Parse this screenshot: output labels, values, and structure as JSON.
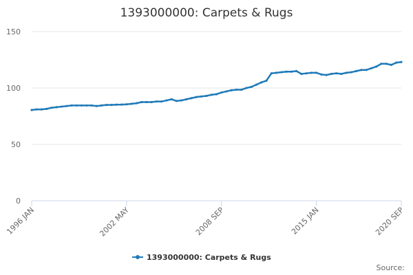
{
  "chart_data": {
    "type": "line",
    "title": "1393000000: Carpets & Rugs",
    "categories": [
      "1996 JAN",
      null,
      null,
      null,
      null,
      null,
      null,
      null,
      null,
      null,
      null,
      null,
      null,
      null,
      null,
      null,
      null,
      null,
      null,
      "2002 MAY",
      null,
      null,
      null,
      null,
      null,
      null,
      null,
      null,
      null,
      null,
      null,
      null,
      null,
      null,
      null,
      null,
      null,
      null,
      "2008 SEP",
      null,
      null,
      null,
      null,
      null,
      null,
      null,
      null,
      null,
      null,
      null,
      null,
      null,
      null,
      null,
      null,
      null,
      null,
      "2015 JAN",
      null,
      null,
      null,
      null,
      null,
      null,
      null,
      null,
      null,
      null,
      null,
      null,
      null,
      null,
      null,
      null,
      "2020 SEP"
    ],
    "series": [
      {
        "name": "1393000000: Carpets & Rugs",
        "color": "#1f7ab8",
        "values": [
          80.5,
          81,
          81,
          81.5,
          82.5,
          83,
          83.5,
          84,
          84.5,
          84.5,
          84.5,
          84.5,
          84.5,
          84,
          84.5,
          85,
          85,
          85.2,
          85.3,
          85.5,
          86,
          86.5,
          87.5,
          87.5,
          87.5,
          88,
          88,
          89,
          90,
          88.5,
          89,
          90,
          91,
          92,
          92.5,
          93,
          94,
          94.5,
          96,
          97,
          98,
          98.5,
          98.5,
          100,
          101,
          103,
          105,
          106.5,
          113,
          113.5,
          114,
          114.5,
          114.5,
          115,
          112.5,
          113,
          113.5,
          113.5,
          112,
          111.5,
          112.5,
          113,
          112.5,
          113.5,
          114,
          115,
          116,
          116,
          117.5,
          119,
          121.5,
          121.5,
          120.5,
          122.5,
          123
        ]
      }
    ],
    "ylim": [
      0,
      150
    ],
    "yticks": [
      0,
      50,
      100,
      150
    ],
    "grid": true,
    "source": "Source:"
  }
}
